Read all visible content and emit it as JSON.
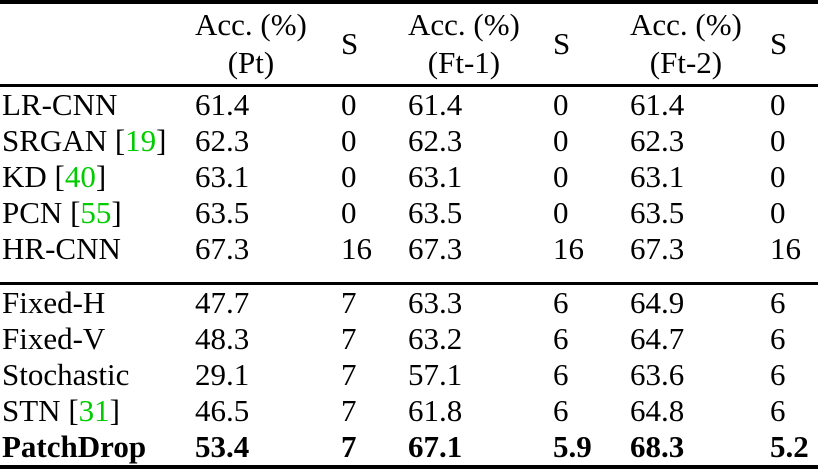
{
  "table": {
    "colors": {
      "citation": "#00cc00",
      "text": "#000000",
      "rule": "#000000",
      "background": "#ffffff"
    },
    "headers": {
      "acc_pt": {
        "line1": "Acc. (%)",
        "line2": "(Pt)"
      },
      "s1": "S",
      "acc_ft1": {
        "line1": "Acc. (%)",
        "line2": "(Ft-1)"
      },
      "s2": "S",
      "acc_ft2": {
        "line1": "Acc. (%)",
        "line2": "(Ft-2)"
      },
      "s3": "S"
    },
    "rows": [
      {
        "name": "LR-CNN",
        "acc_pt": "61.4",
        "s_pt": "0",
        "acc_ft1": "61.4",
        "s_ft1": "0",
        "acc_ft2": "61.4",
        "s_ft2": "0"
      },
      {
        "name": "SRGAN ",
        "bracket_open": "[",
        "cite": "19",
        "bracket_close": "]",
        "acc_pt": "62.3",
        "s_pt": "0",
        "acc_ft1": "62.3",
        "s_ft1": "0",
        "acc_ft2": "62.3",
        "s_ft2": "0"
      },
      {
        "name": "KD ",
        "bracket_open": "[",
        "cite": "40",
        "bracket_close": "]",
        "acc_pt": "63.1",
        "s_pt": "0",
        "acc_ft1": "63.1",
        "s_ft1": "0",
        "acc_ft2": "63.1",
        "s_ft2": "0"
      },
      {
        "name": "PCN ",
        "bracket_open": "[",
        "cite": "55",
        "bracket_close": "]",
        "acc_pt": "63.5",
        "s_pt": "0",
        "acc_ft1": "63.5",
        "s_ft1": "0",
        "acc_ft2": "63.5",
        "s_ft2": "0"
      },
      {
        "name": "HR-CNN",
        "acc_pt": "67.3",
        "s_pt": "16",
        "acc_ft1": "67.3",
        "s_ft1": "16",
        "acc_ft2": "67.3",
        "s_ft2": "16"
      },
      {
        "name": "Fixed-H",
        "acc_pt": "47.7",
        "s_pt": "7",
        "acc_ft1": "63.3",
        "s_ft1": "6",
        "acc_ft2": "64.9",
        "s_ft2": "6"
      },
      {
        "name": "Fixed-V",
        "acc_pt": "48.3",
        "s_pt": "7",
        "acc_ft1": "63.2",
        "s_ft1": "6",
        "acc_ft2": "64.7",
        "s_ft2": "6"
      },
      {
        "name": "Stochastic",
        "acc_pt": "29.1",
        "s_pt": "7",
        "acc_ft1": "57.1",
        "s_ft1": "6",
        "acc_ft2": "63.6",
        "s_ft2": "6"
      },
      {
        "name": "STN ",
        "bracket_open": "[",
        "cite": "31",
        "bracket_close": "]",
        "acc_pt": "46.5",
        "s_pt": "7",
        "acc_ft1": "61.8",
        "s_ft1": "6",
        "acc_ft2": "64.8",
        "s_ft2": "6"
      },
      {
        "name": "PatchDrop",
        "acc_pt": "53.4",
        "s_pt": "7",
        "acc_ft1": "67.1",
        "s_ft1": "5.9",
        "acc_ft2": "68.3",
        "s_ft2": "5.2"
      }
    ]
  }
}
